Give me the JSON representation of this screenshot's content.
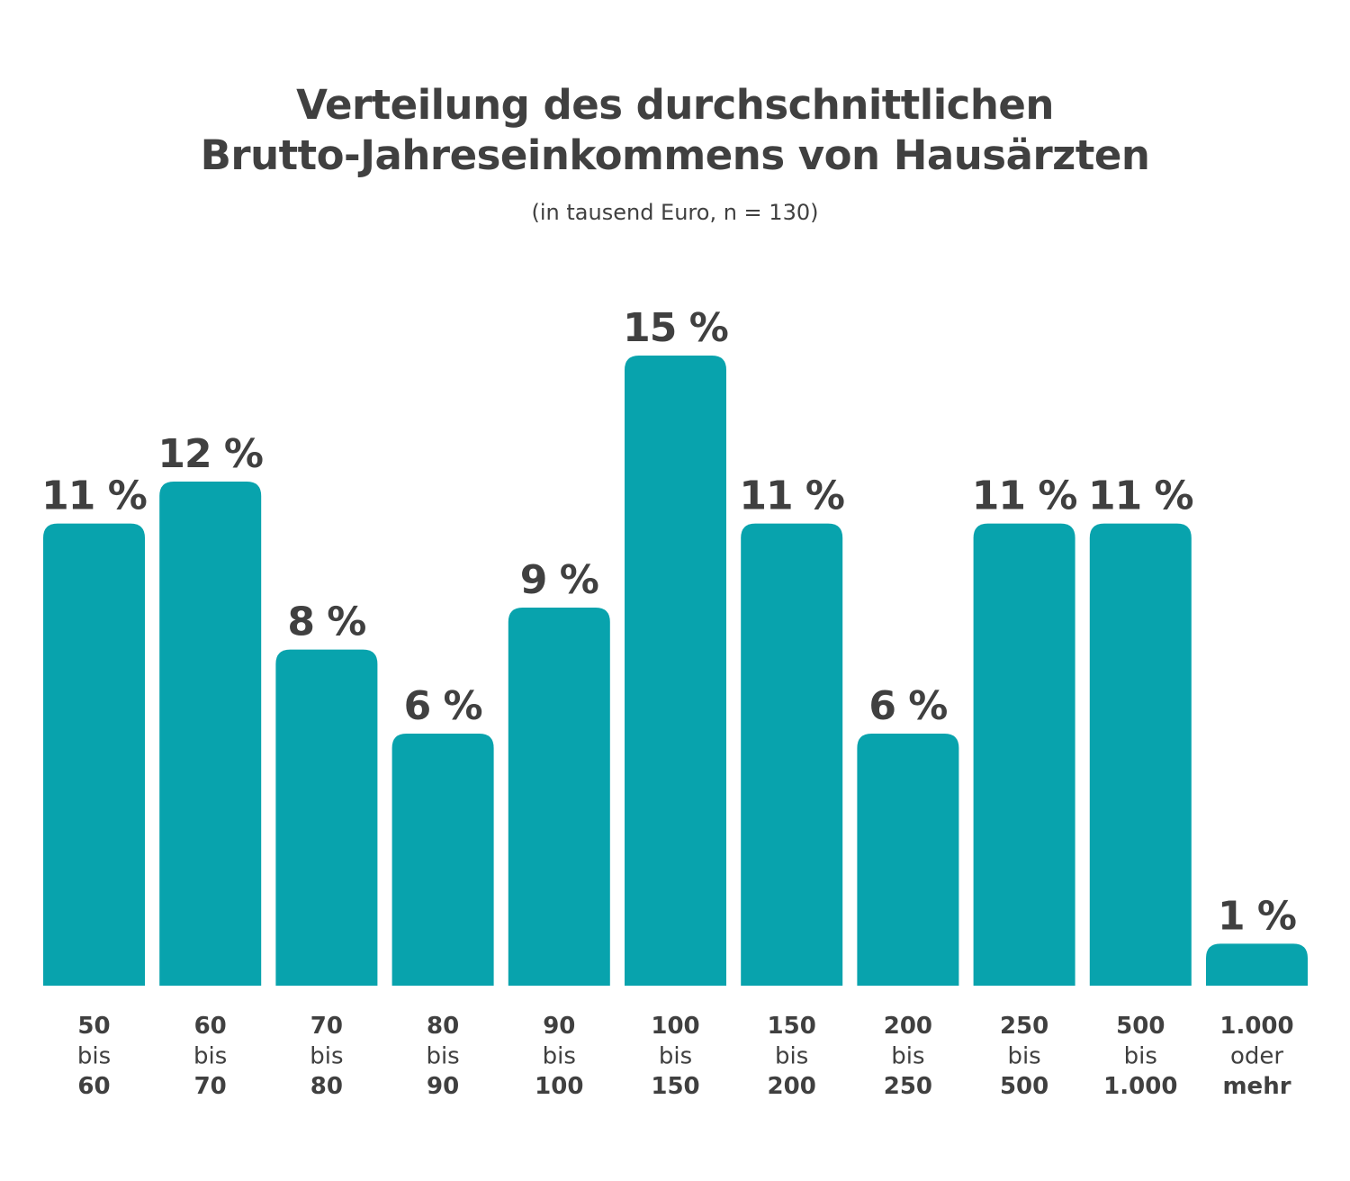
{
  "chart_data": {
    "type": "bar",
    "title": "Verteilung des durchschnittlichen Brutto-Jahreseinkommens von Hausärzten",
    "title_lines": [
      "Verteilung des durchschnittlichen",
      "Brutto-Jahreseinkommens von Hausärzten"
    ],
    "subtitle": "(in tausend Euro, n = 130)",
    "categories": [
      [
        "50",
        "bis",
        "60"
      ],
      [
        "60",
        "bis",
        "70"
      ],
      [
        "70",
        "bis",
        "80"
      ],
      [
        "80",
        "bis",
        "90"
      ],
      [
        "90",
        "bis",
        "100"
      ],
      [
        "100",
        "bis",
        "150"
      ],
      [
        "150",
        "bis",
        "200"
      ],
      [
        "200",
        "bis",
        "250"
      ],
      [
        "250",
        "bis",
        "500"
      ],
      [
        "500",
        "bis",
        "1.000"
      ],
      [
        "1.000",
        "oder",
        "mehr"
      ]
    ],
    "values": [
      11,
      12,
      8,
      6,
      9,
      15,
      11,
      6,
      11,
      11,
      1
    ],
    "value_suffix": " %",
    "ylim": [
      0,
      15
    ],
    "grid": false,
    "bar_color": "#08A3AD",
    "text_color": "#404040"
  }
}
